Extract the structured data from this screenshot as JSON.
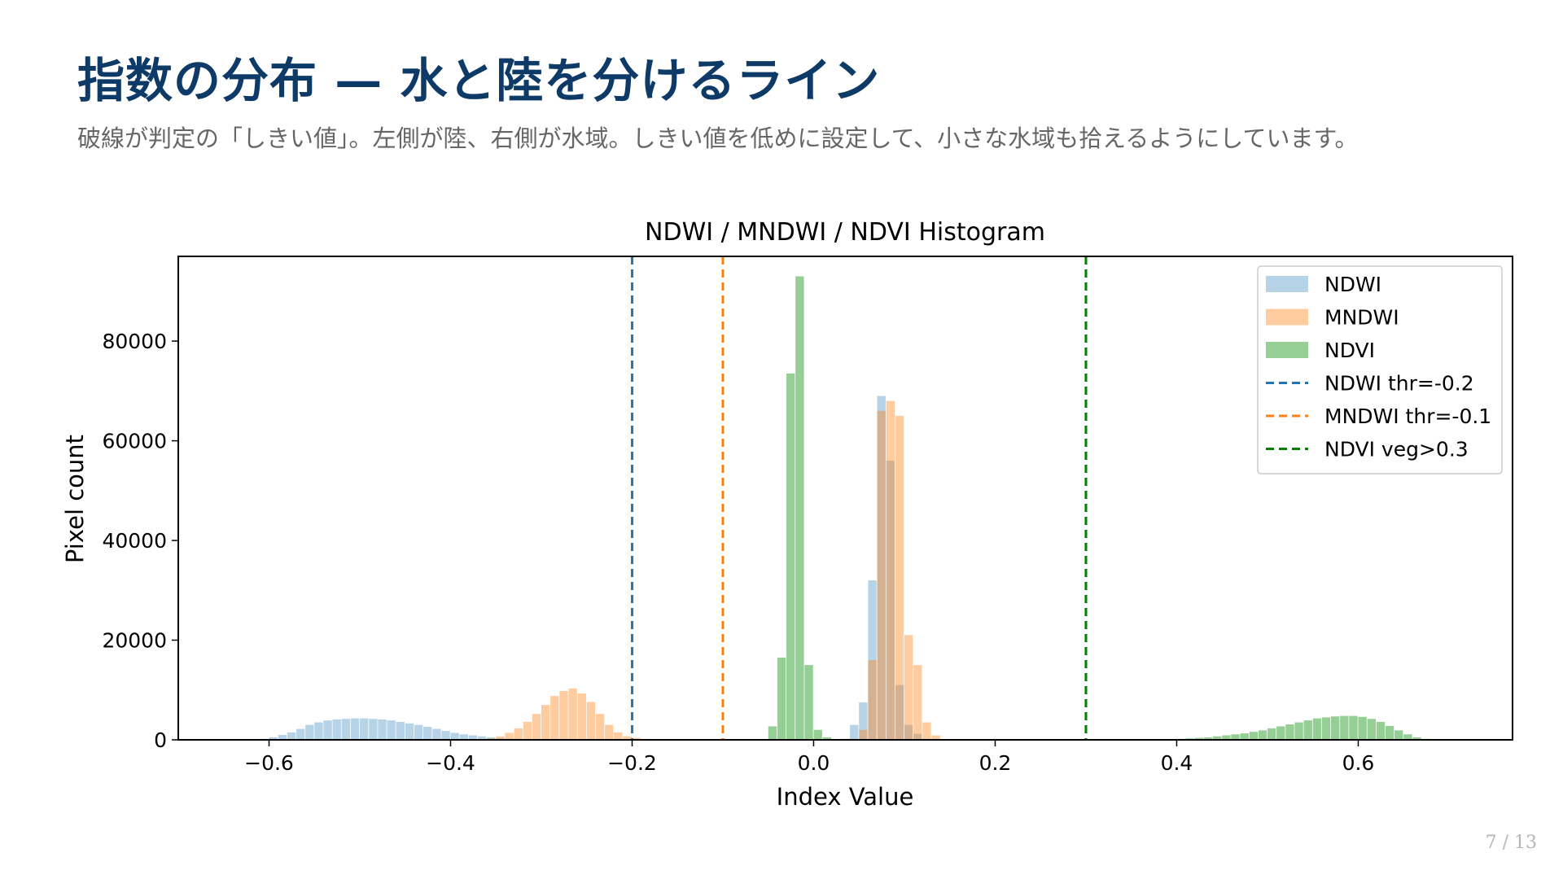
{
  "slide": {
    "title": "指数の分布 — 水と陸を分けるライン",
    "subtitle": "破線が判定の「しきい値」。左側が陸、右側が水域。しきい値を低めに設定して、小さな水域も拾えるようにしています。",
    "page_number": "7 / 13"
  },
  "chart_data": {
    "type": "histogram",
    "title": "NDWI / MNDWI / NDVI Histogram",
    "xlabel": "Index Value",
    "ylabel": "Pixel count",
    "xlim": [
      -0.7,
      0.77
    ],
    "ylim": [
      0,
      97000
    ],
    "x_ticks": [
      -0.6,
      -0.4,
      -0.2,
      0.0,
      0.2,
      0.4,
      0.6
    ],
    "x_tick_labels": [
      "−0.6",
      "−0.4",
      "−0.2",
      "0.0",
      "0.2",
      "0.4",
      "0.6"
    ],
    "y_ticks": [
      0,
      20000,
      40000,
      60000,
      80000
    ],
    "y_tick_labels": [
      "0",
      "20000",
      "40000",
      "60000",
      "80000"
    ],
    "grid": false,
    "legend": "top-right",
    "series": [
      {
        "name": "NDWI",
        "color": "#1f77b4",
        "opacity": 0.32,
        "bin_width": 0.0093,
        "bins": [
          [
            -0.61,
            200
          ],
          [
            -0.6,
            500
          ],
          [
            -0.59,
            1000
          ],
          [
            -0.58,
            1500
          ],
          [
            -0.57,
            2200
          ],
          [
            -0.56,
            3000
          ],
          [
            -0.55,
            3500
          ],
          [
            -0.54,
            3900
          ],
          [
            -0.53,
            4100
          ],
          [
            -0.52,
            4200
          ],
          [
            -0.51,
            4300
          ],
          [
            -0.5,
            4300
          ],
          [
            -0.49,
            4200
          ],
          [
            -0.48,
            4100
          ],
          [
            -0.47,
            3900
          ],
          [
            -0.46,
            3600
          ],
          [
            -0.45,
            3300
          ],
          [
            -0.44,
            3000
          ],
          [
            -0.43,
            2600
          ],
          [
            -0.42,
            2200
          ],
          [
            -0.41,
            1800
          ],
          [
            -0.4,
            1400
          ],
          [
            -0.39,
            1100
          ],
          [
            -0.38,
            900
          ],
          [
            -0.37,
            700
          ],
          [
            -0.36,
            500
          ],
          [
            -0.35,
            350
          ],
          [
            -0.34,
            250
          ],
          [
            -0.33,
            180
          ],
          [
            -0.32,
            130
          ],
          [
            -0.31,
            100
          ],
          [
            -0.3,
            80
          ],
          [
            -0.28,
            60
          ],
          [
            -0.26,
            50
          ],
          [
            -0.24,
            40
          ],
          [
            -0.22,
            30
          ],
          [
            -0.2,
            25
          ],
          [
            -0.18,
            20
          ],
          [
            -0.15,
            18
          ],
          [
            -0.12,
            15
          ],
          [
            -0.09,
            12
          ],
          [
            -0.06,
            10
          ],
          [
            -0.03,
            10
          ],
          [
            0.04,
            3000
          ],
          [
            0.05,
            7500
          ],
          [
            0.06,
            32000
          ],
          [
            0.07,
            69000
          ],
          [
            0.08,
            56000
          ],
          [
            0.09,
            11000
          ],
          [
            0.1,
            3000
          ],
          [
            0.11,
            1200
          ]
        ]
      },
      {
        "name": "MNDWI",
        "color": "#ff7f0e",
        "opacity": 0.4,
        "bin_width": 0.0093,
        "bins": [
          [
            -0.36,
            300
          ],
          [
            -0.35,
            700
          ],
          [
            -0.34,
            1400
          ],
          [
            -0.33,
            2300
          ],
          [
            -0.32,
            3600
          ],
          [
            -0.31,
            5200
          ],
          [
            -0.3,
            7000
          ],
          [
            -0.29,
            8800
          ],
          [
            -0.28,
            9800
          ],
          [
            -0.27,
            10300
          ],
          [
            -0.26,
            9300
          ],
          [
            -0.25,
            7600
          ],
          [
            -0.24,
            5200
          ],
          [
            -0.23,
            3000
          ],
          [
            -0.22,
            1500
          ],
          [
            -0.21,
            700
          ],
          [
            -0.2,
            400
          ],
          [
            -0.19,
            200
          ],
          [
            -0.17,
            120
          ],
          [
            -0.14,
            80
          ],
          [
            -0.11,
            60
          ],
          [
            -0.08,
            40
          ],
          [
            -0.05,
            30
          ],
          [
            -0.02,
            25
          ],
          [
            0.01,
            20
          ],
          [
            0.04,
            200
          ],
          [
            0.05,
            2000
          ],
          [
            0.06,
            16000
          ],
          [
            0.07,
            66000
          ],
          [
            0.08,
            68000
          ],
          [
            0.09,
            65000
          ],
          [
            0.1,
            21000
          ],
          [
            0.11,
            15000
          ],
          [
            0.12,
            3500
          ],
          [
            0.13,
            900
          ]
        ]
      },
      {
        "name": "NDVI",
        "color": "#2ca02c",
        "opacity": 0.5,
        "bin_width": 0.0093,
        "bins": [
          [
            -0.05,
            2700
          ],
          [
            -0.04,
            16500
          ],
          [
            -0.03,
            73500
          ],
          [
            -0.02,
            93000
          ],
          [
            -0.01,
            15000
          ],
          [
            0.0,
            2000
          ],
          [
            0.01,
            500
          ],
          [
            0.03,
            200
          ],
          [
            0.05,
            100
          ],
          [
            0.1,
            60
          ],
          [
            0.15,
            40
          ],
          [
            0.2,
            30
          ],
          [
            0.25,
            20
          ],
          [
            0.3,
            30
          ],
          [
            0.35,
            60
          ],
          [
            0.38,
            100
          ],
          [
            0.4,
            200
          ],
          [
            0.41,
            300
          ],
          [
            0.42,
            400
          ],
          [
            0.43,
            500
          ],
          [
            0.44,
            700
          ],
          [
            0.45,
            900
          ],
          [
            0.46,
            1100
          ],
          [
            0.47,
            1300
          ],
          [
            0.48,
            1600
          ],
          [
            0.49,
            1900
          ],
          [
            0.5,
            2300
          ],
          [
            0.51,
            2700
          ],
          [
            0.52,
            3100
          ],
          [
            0.53,
            3500
          ],
          [
            0.54,
            3900
          ],
          [
            0.55,
            4300
          ],
          [
            0.56,
            4500
          ],
          [
            0.57,
            4700
          ],
          [
            0.58,
            4800
          ],
          [
            0.59,
            4800
          ],
          [
            0.6,
            4600
          ],
          [
            0.61,
            4200
          ],
          [
            0.62,
            3600
          ],
          [
            0.63,
            2800
          ],
          [
            0.64,
            1900
          ],
          [
            0.65,
            1100
          ],
          [
            0.66,
            500
          ],
          [
            0.67,
            200
          ]
        ]
      }
    ],
    "thresholds": [
      {
        "name": "NDWI thr=-0.2",
        "x": -0.2,
        "color": "#1f77b4"
      },
      {
        "name": "MNDWI thr=-0.1",
        "x": -0.1,
        "color": "#ff7f0e"
      },
      {
        "name": "NDVI veg>0.3",
        "x": 0.3,
        "color": "#008000"
      }
    ]
  }
}
